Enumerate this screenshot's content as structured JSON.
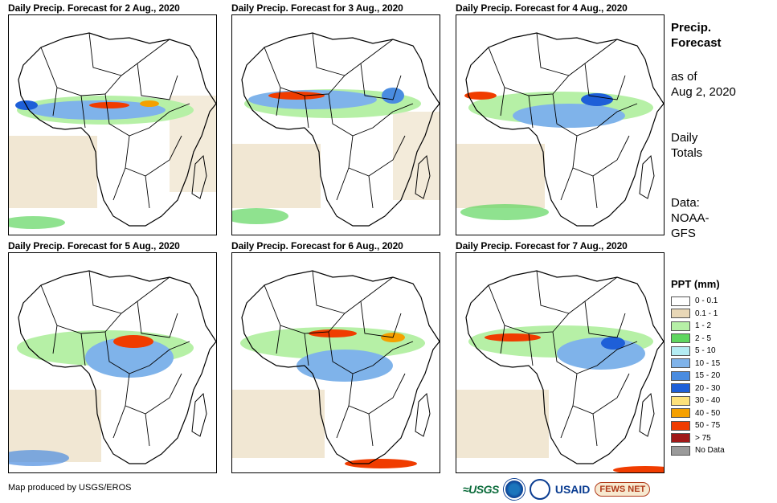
{
  "panels": [
    {
      "title": "Daily Precip. Forecast for 2 Aug., 2020"
    },
    {
      "title": "Daily Precip. Forecast for 3 Aug., 2020"
    },
    {
      "title": "Daily Precip. Forecast for 4 Aug., 2020"
    },
    {
      "title": "Daily Precip. Forecast for 5 Aug., 2020"
    },
    {
      "title": "Daily Precip. Forecast for 6 Aug., 2020"
    },
    {
      "title": "Daily Precip. Forecast for 7 Aug., 2020"
    }
  ],
  "sidebar": {
    "title_line1": "Precip.",
    "title_line2": "Forecast",
    "asof_line1": "as of",
    "asof_line2": "Aug 2, 2020",
    "daily_line1": "Daily",
    "daily_line2": "Totals",
    "data_line1": "Data:",
    "data_line2": "NOAA-",
    "data_line3": "GFS"
  },
  "legend": {
    "title": "PPT (mm)",
    "items": [
      {
        "label": "0 - 0.1",
        "color": "#ffffff"
      },
      {
        "label": "0.1 - 1",
        "color": "#e8d7b6"
      },
      {
        "label": "1 - 2",
        "color": "#b6f0a6"
      },
      {
        "label": "2 - 5",
        "color": "#5fd65f"
      },
      {
        "label": "5 - 10",
        "color": "#b4ecf2"
      },
      {
        "label": "10 - 15",
        "color": "#7fb3ea"
      },
      {
        "label": "15 - 20",
        "color": "#4a8ce0"
      },
      {
        "label": "20 - 30",
        "color": "#1e5fd8"
      },
      {
        "label": "30 - 40",
        "color": "#fde17a"
      },
      {
        "label": "40 - 50",
        "color": "#f5a000"
      },
      {
        "label": "50 - 75",
        "color": "#f03c00"
      },
      {
        "label": "> 75",
        "color": "#a01818"
      },
      {
        "label": "No Data",
        "color": "#9a9a9a"
      }
    ]
  },
  "footer": {
    "credit": "Map produced by USGS/EROS",
    "logo_usgs": "≈USGS",
    "logo_usaid": "USAID",
    "logo_fews": "FEWS NET"
  }
}
